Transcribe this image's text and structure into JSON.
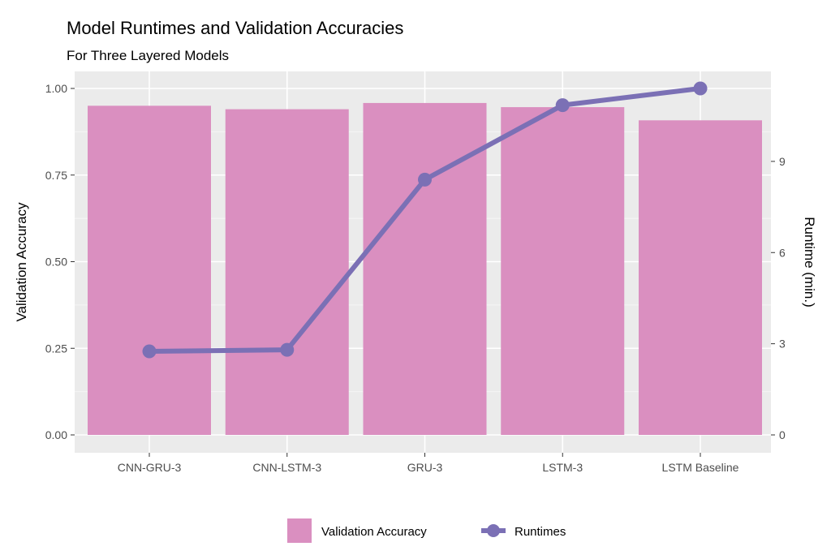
{
  "chart_data": {
    "type": "bar",
    "title": "Model Runtimes and Validation Accuracies",
    "subtitle": "For Three Layered Models",
    "categories": [
      "CNN-GRU-3",
      "CNN-LSTM-3",
      "GRU-3",
      "LSTM-3",
      "LSTM Baseline"
    ],
    "ylabel": "Validation Accuracy",
    "y2label": "Runtime (min.)",
    "ylim": [
      0,
      1.0
    ],
    "y2lim": [
      0,
      11.4
    ],
    "yticks": [
      "0.00",
      "0.25",
      "0.50",
      "0.75",
      "1.00"
    ],
    "y2ticks": [
      "0",
      "3",
      "6",
      "9"
    ],
    "grid": true,
    "legend_position": "bottom",
    "series": [
      {
        "name": "Validation Accuracy",
        "type": "bar",
        "axis": "left",
        "color": "#da8fc0",
        "values": [
          0.95,
          0.94,
          0.958,
          0.946,
          0.908
        ]
      },
      {
        "name": "Runtimes",
        "type": "line",
        "axis": "right",
        "color": "#7b70b5",
        "values": [
          2.75,
          2.8,
          8.4,
          10.85,
          11.4
        ]
      }
    ]
  }
}
